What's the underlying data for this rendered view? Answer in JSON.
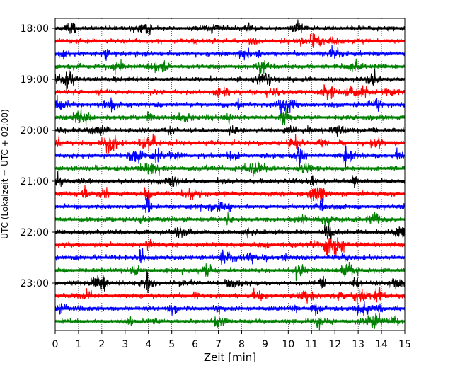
{
  "chart_data": {
    "type": "line",
    "title": "",
    "xlabel": "Zeit  [min]",
    "ylabel": "UTC (Lokalzeit = UTC + 02:00)",
    "xlim": [
      0,
      15
    ],
    "x_ticks": [
      "0",
      "1",
      "2",
      "3",
      "4",
      "5",
      "6",
      "7",
      "8",
      "9",
      "10",
      "11",
      "12",
      "13",
      "14",
      "15"
    ],
    "y_ticks": [
      "18:00",
      "19:00",
      "20:00",
      "21:00",
      "22:00",
      "23:00"
    ],
    "grid": "vertical dotted lines at each minute",
    "trace_interval_min": 15,
    "series": [
      {
        "start": "18:00",
        "color": "#000000"
      },
      {
        "start": "18:15",
        "color": "#ff0000"
      },
      {
        "start": "18:30",
        "color": "#0000ff"
      },
      {
        "start": "18:45",
        "color": "#008000"
      },
      {
        "start": "19:00",
        "color": "#000000"
      },
      {
        "start": "19:15",
        "color": "#ff0000"
      },
      {
        "start": "19:30",
        "color": "#0000ff"
      },
      {
        "start": "19:45",
        "color": "#008000"
      },
      {
        "start": "20:00",
        "color": "#000000"
      },
      {
        "start": "20:15",
        "color": "#ff0000"
      },
      {
        "start": "20:30",
        "color": "#0000ff",
        "events": [
          12.45
        ]
      },
      {
        "start": "20:45",
        "color": "#008000"
      },
      {
        "start": "21:00",
        "color": "#000000"
      },
      {
        "start": "21:15",
        "color": "#ff0000",
        "events": [
          1.25,
          3.95
        ]
      },
      {
        "start": "21:30",
        "color": "#0000ff",
        "events": [
          4.0
        ]
      },
      {
        "start": "21:45",
        "color": "#008000"
      },
      {
        "start": "22:00",
        "color": "#000000",
        "events": [
          11.7
        ]
      },
      {
        "start": "22:15",
        "color": "#ff0000"
      },
      {
        "start": "22:30",
        "color": "#0000ff"
      },
      {
        "start": "22:45",
        "color": "#008000"
      },
      {
        "start": "23:00",
        "color": "#000000",
        "events": [
          3.95
        ]
      },
      {
        "start": "23:15",
        "color": "#ff0000"
      },
      {
        "start": "23:30",
        "color": "#0000ff",
        "events": [
          11.2
        ]
      },
      {
        "start": "23:45",
        "color": "#008000"
      }
    ]
  }
}
